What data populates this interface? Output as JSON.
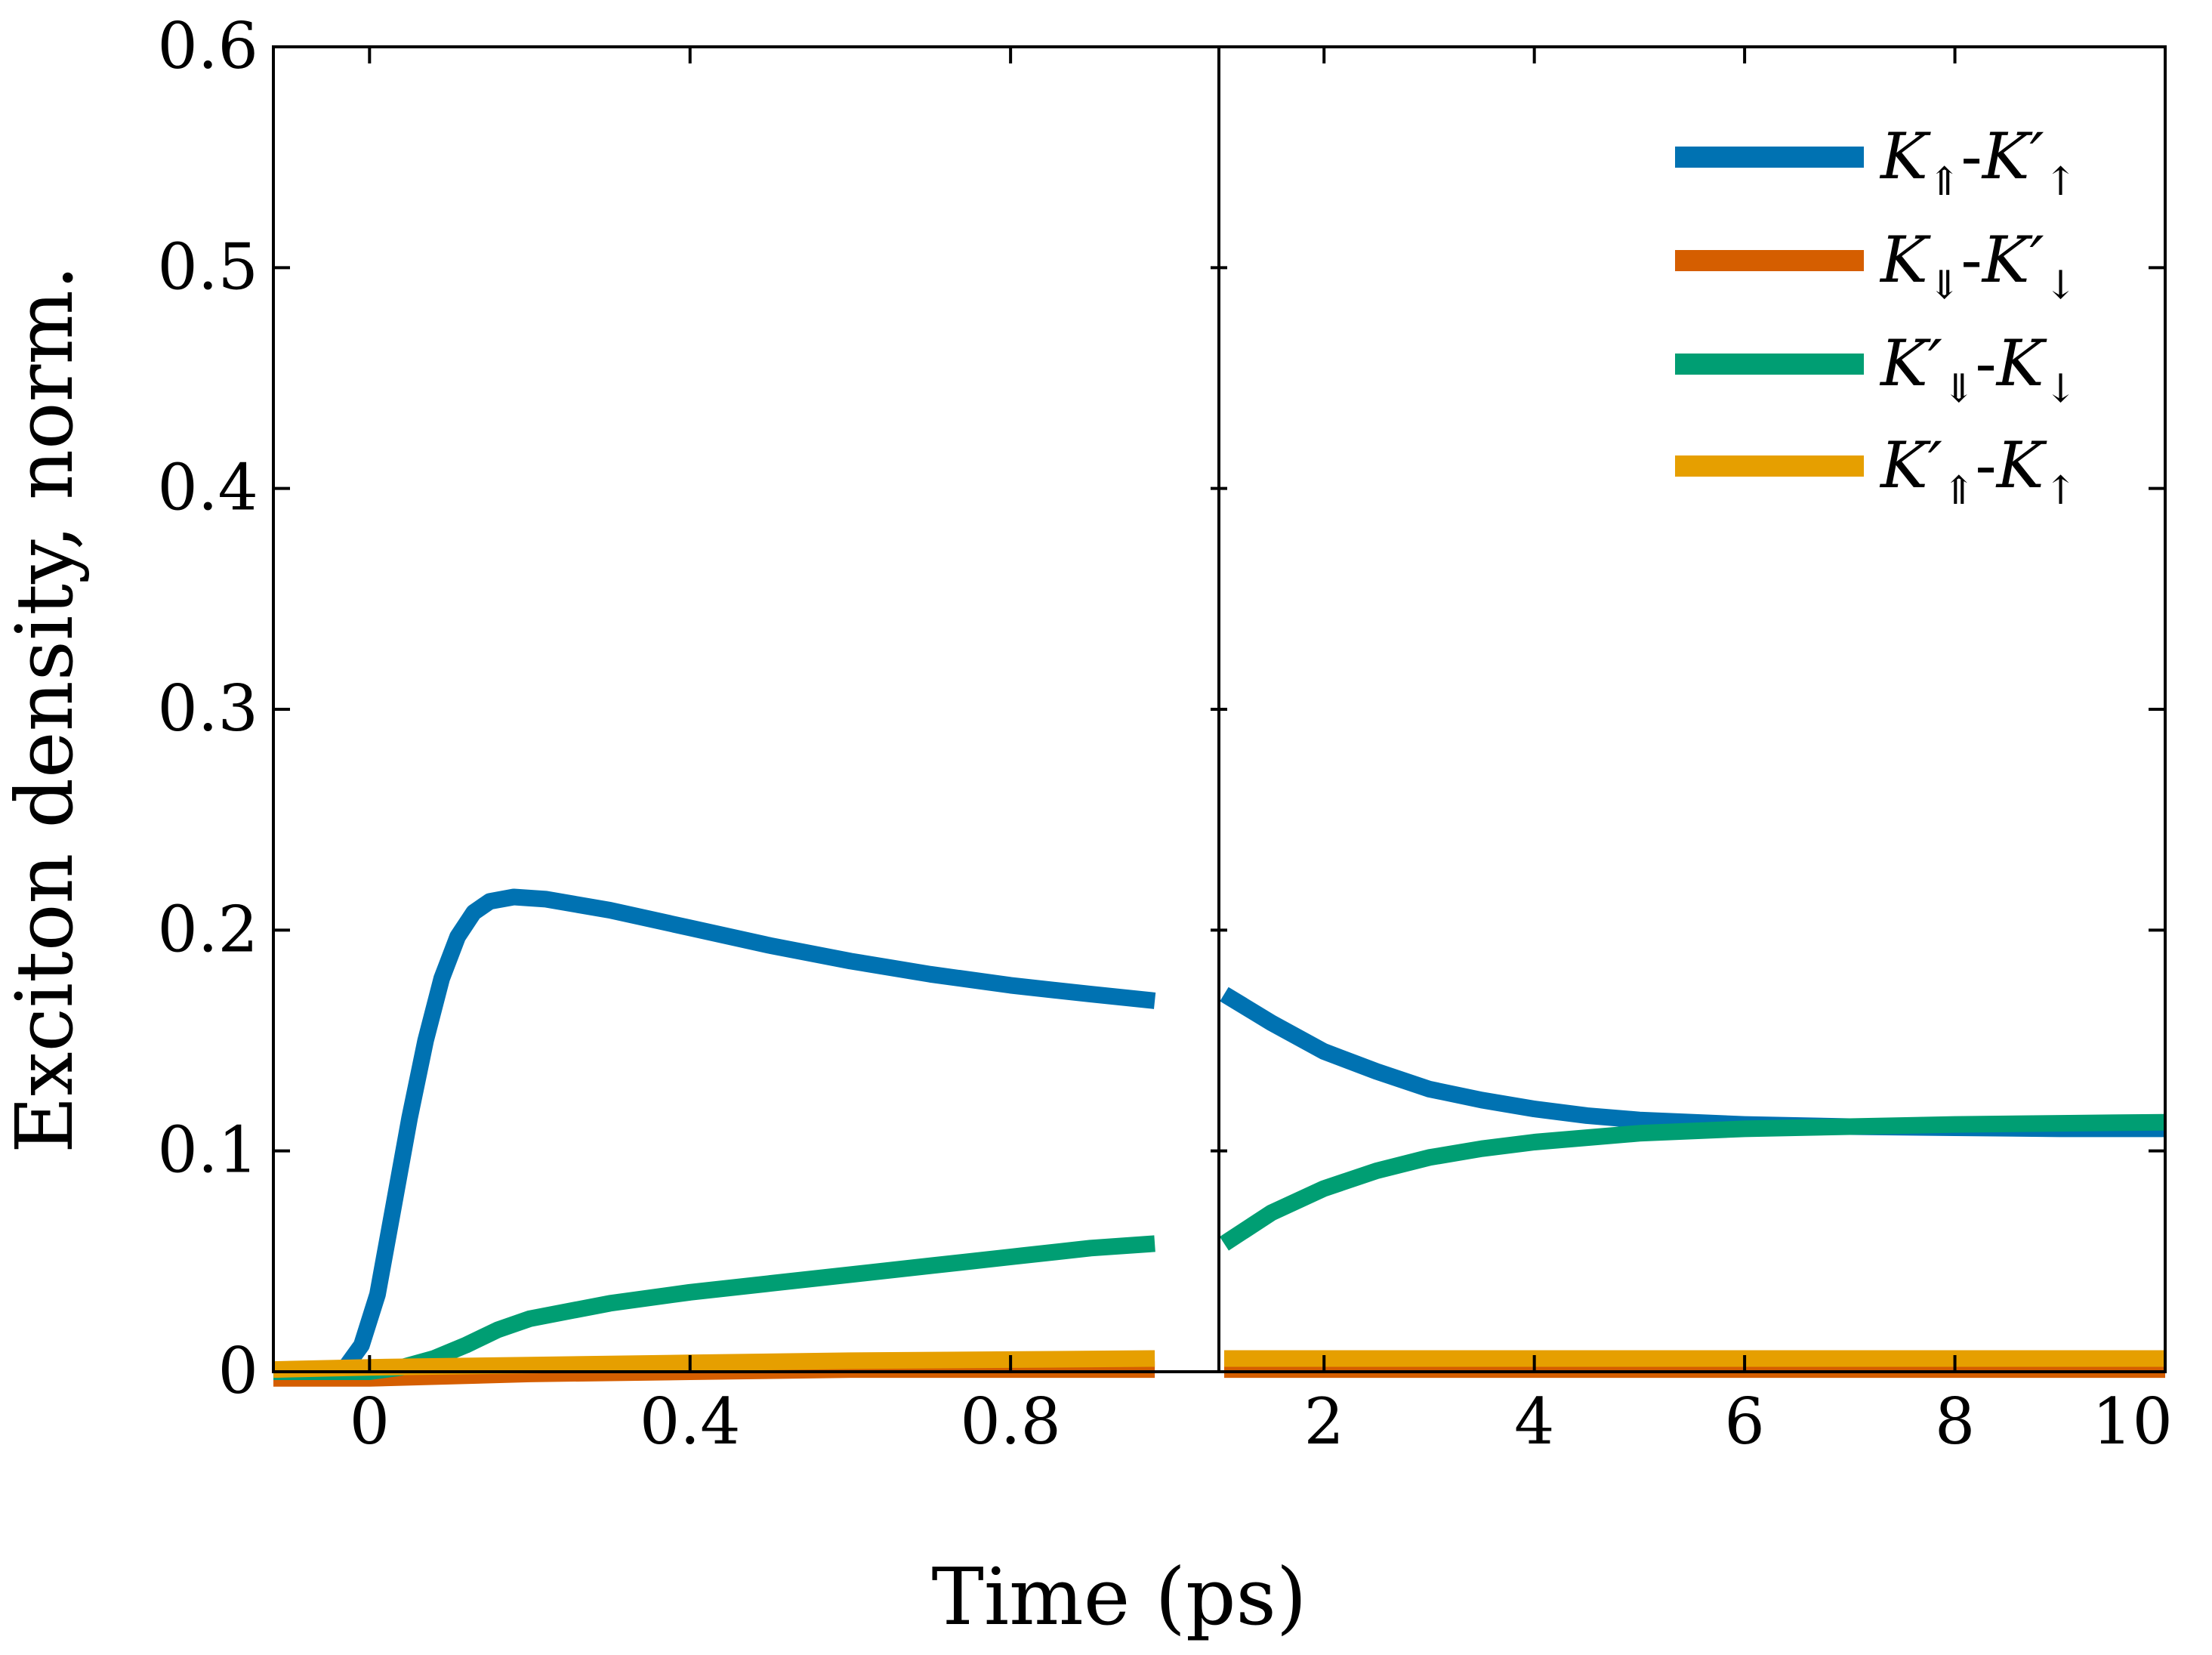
{
  "chart_data": {
    "type": "line",
    "xlabel": "Time (ps)",
    "ylabel": "Exciton density, norm.",
    "ylim": [
      0,
      0.6
    ],
    "y_ticks": [
      "0",
      "0.1",
      "0.2",
      "0.3",
      "0.4",
      "0.5",
      "0.6"
    ],
    "y_tick_values": [
      0,
      0.1,
      0.2,
      0.3,
      0.4,
      0.5,
      0.6
    ],
    "panels": [
      {
        "name": "early",
        "xlim": [
          -0.12,
          1.06
        ],
        "x_ticks": [
          "0",
          "0.4",
          "0.8"
        ],
        "x_tick_values": [
          0,
          0.4,
          0.8
        ]
      },
      {
        "name": "late",
        "xlim": [
          1.0,
          10.0
        ],
        "x_ticks": [
          "2",
          "4",
          "6",
          "8",
          "10"
        ],
        "x_tick_values": [
          2,
          4,
          6,
          8,
          10
        ]
      }
    ],
    "series": [
      {
        "name": "K⇑-K′↑",
        "legend": {
          "base": "K",
          "sub1": "⇑",
          "base2": "K′",
          "sub2": "↑"
        },
        "color": "#0072B2",
        "early": [
          [
            -0.12,
            0
          ],
          [
            -0.05,
            0
          ],
          [
            -0.03,
            0.002
          ],
          [
            -0.01,
            0.012
          ],
          [
            0.01,
            0.035
          ],
          [
            0.03,
            0.075
          ],
          [
            0.05,
            0.115
          ],
          [
            0.07,
            0.15
          ],
          [
            0.09,
            0.178
          ],
          [
            0.11,
            0.197
          ],
          [
            0.13,
            0.208
          ],
          [
            0.15,
            0.213
          ],
          [
            0.18,
            0.215
          ],
          [
            0.22,
            0.214
          ],
          [
            0.3,
            0.209
          ],
          [
            0.4,
            0.201
          ],
          [
            0.5,
            0.193
          ],
          [
            0.6,
            0.186
          ],
          [
            0.7,
            0.18
          ],
          [
            0.8,
            0.175
          ],
          [
            0.9,
            0.171
          ],
          [
            0.98,
            0.168
          ]
        ],
        "late": [
          [
            1.05,
            0.171
          ],
          [
            1.5,
            0.158
          ],
          [
            2,
            0.145
          ],
          [
            2.5,
            0.136
          ],
          [
            3,
            0.128
          ],
          [
            3.5,
            0.123
          ],
          [
            4,
            0.119
          ],
          [
            4.5,
            0.116
          ],
          [
            5,
            0.114
          ],
          [
            6,
            0.112
          ],
          [
            7,
            0.111
          ],
          [
            8,
            0.1105
          ],
          [
            9,
            0.11
          ],
          [
            10,
            0.11
          ]
        ]
      },
      {
        "name": "K⇓-K′↓",
        "legend": {
          "base": "K",
          "sub1": "⇓",
          "base2": "K′",
          "sub2": "↓"
        },
        "color": "#D55E00",
        "early": [
          [
            -0.12,
            -0.003
          ],
          [
            0,
            -0.003
          ],
          [
            0.2,
            -0.001
          ],
          [
            0.4,
            0
          ],
          [
            0.6,
            0.001
          ],
          [
            0.8,
            0.001
          ],
          [
            0.98,
            0.001
          ]
        ],
        "late": [
          [
            1.05,
            0.001
          ],
          [
            4,
            0.001
          ],
          [
            10,
            0.001
          ]
        ]
      },
      {
        "name": "K′⇓-K↓",
        "legend": {
          "base": "K′",
          "sub1": "⇓",
          "base2": "K",
          "sub2": "↓"
        },
        "color": "#009E73",
        "early": [
          [
            -0.12,
            0
          ],
          [
            0,
            0
          ],
          [
            0.04,
            0.002
          ],
          [
            0.08,
            0.006
          ],
          [
            0.12,
            0.012
          ],
          [
            0.16,
            0.019
          ],
          [
            0.2,
            0.024
          ],
          [
            0.3,
            0.031
          ],
          [
            0.4,
            0.036
          ],
          [
            0.5,
            0.04
          ],
          [
            0.6,
            0.044
          ],
          [
            0.7,
            0.048
          ],
          [
            0.8,
            0.052
          ],
          [
            0.9,
            0.056
          ],
          [
            0.98,
            0.058
          ]
        ],
        "late": [
          [
            1.05,
            0.058
          ],
          [
            1.5,
            0.072
          ],
          [
            2,
            0.083
          ],
          [
            2.5,
            0.091
          ],
          [
            3,
            0.097
          ],
          [
            3.5,
            0.101
          ],
          [
            4,
            0.104
          ],
          [
            5,
            0.108
          ],
          [
            6,
            0.11
          ],
          [
            7,
            0.111
          ],
          [
            8,
            0.112
          ],
          [
            9,
            0.1125
          ],
          [
            10,
            0.113
          ]
        ]
      },
      {
        "name": "K′⇑-K↑",
        "legend": {
          "base": "K′",
          "sub1": "⇑",
          "base2": "K",
          "sub2": "↑"
        },
        "color": "#E69F00",
        "early": [
          [
            -0.12,
            0.001
          ],
          [
            0,
            0.002
          ],
          [
            0.2,
            0.003
          ],
          [
            0.4,
            0.004
          ],
          [
            0.6,
            0.005
          ],
          [
            0.8,
            0.0055
          ],
          [
            0.98,
            0.006
          ]
        ],
        "late": [
          [
            1.05,
            0.006
          ],
          [
            4,
            0.006
          ],
          [
            10,
            0.006
          ]
        ]
      }
    ]
  }
}
